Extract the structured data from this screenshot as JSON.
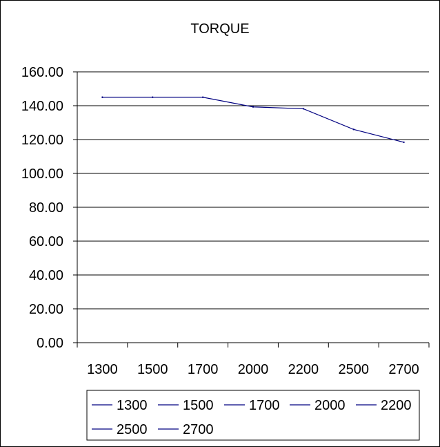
{
  "chart_data": {
    "type": "line",
    "title": "TORQUE",
    "xlabel": "",
    "ylabel": "",
    "categories": [
      "1300",
      "1500",
      "1700",
      "2000",
      "2200",
      "2500",
      "2700"
    ],
    "values": [
      145.0,
      145.0,
      145.0,
      139.3,
      138.2,
      126.0,
      118.4
    ],
    "ylim": [
      0,
      160
    ],
    "yticks": [
      "0.00",
      "20.00",
      "40.00",
      "60.00",
      "80.00",
      "100.00",
      "120.00",
      "140.00",
      "160.00"
    ],
    "grid": true,
    "legend_position": "bottom",
    "legend_entries": [
      "1300",
      "1500",
      "1700",
      "2000",
      "2200",
      "2500",
      "2700"
    ],
    "line_color": "#000080",
    "gridline_color": "#000000"
  }
}
